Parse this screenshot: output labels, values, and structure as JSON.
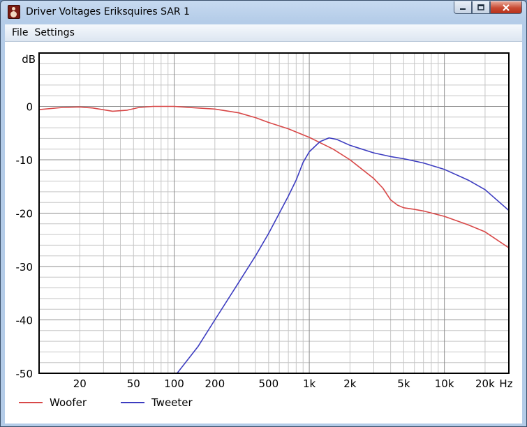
{
  "window": {
    "title": "Driver Voltages Eriksquires SAR 1",
    "icon": "speaker-icon"
  },
  "menu": {
    "items": [
      "File",
      "Settings"
    ]
  },
  "chart_data": {
    "type": "line",
    "ylabel": "dB",
    "xlabel": "Hz",
    "x_scale": "log",
    "xlim": [
      10,
      30000
    ],
    "ylim": [
      -50,
      10
    ],
    "grid": true,
    "legend_position": "bottom-left",
    "y_ticks": [
      0,
      -10,
      -20,
      -30,
      -40,
      -50
    ],
    "y_tick_labels": [
      "0",
      "-10",
      "-20",
      "-30",
      "-40",
      "-50"
    ],
    "x_ticks": [
      20,
      50,
      100,
      200,
      500,
      1000,
      2000,
      5000,
      10000,
      20000
    ],
    "x_tick_labels": [
      "20",
      "50",
      "100",
      "200",
      "500",
      "1k",
      "2k",
      "5k",
      "10k",
      "20k"
    ],
    "series": [
      {
        "name": "Woofer",
        "color": "#d84848",
        "points": [
          [
            10,
            -0.6
          ],
          [
            15,
            -0.2
          ],
          [
            20,
            -0.1
          ],
          [
            25,
            -0.3
          ],
          [
            35,
            -0.9
          ],
          [
            45,
            -0.7
          ],
          [
            55,
            -0.2
          ],
          [
            70,
            0.0
          ],
          [
            90,
            0.0
          ],
          [
            100,
            0.0
          ],
          [
            150,
            -0.3
          ],
          [
            200,
            -0.5
          ],
          [
            300,
            -1.2
          ],
          [
            400,
            -2.1
          ],
          [
            500,
            -3.0
          ],
          [
            700,
            -4.2
          ],
          [
            1000,
            -5.8
          ],
          [
            1500,
            -8.0
          ],
          [
            2000,
            -10.0
          ],
          [
            3000,
            -13.5
          ],
          [
            3500,
            -15.3
          ],
          [
            4000,
            -17.5
          ],
          [
            4500,
            -18.5
          ],
          [
            5000,
            -19.0
          ],
          [
            6000,
            -19.3
          ],
          [
            7000,
            -19.6
          ],
          [
            10000,
            -20.6
          ],
          [
            15000,
            -22.2
          ],
          [
            20000,
            -23.5
          ],
          [
            30000,
            -26.5
          ]
        ]
      },
      {
        "name": "Tweeter",
        "color": "#3c3cc0",
        "points": [
          [
            105,
            -50
          ],
          [
            150,
            -45
          ],
          [
            200,
            -40
          ],
          [
            300,
            -33
          ],
          [
            400,
            -28
          ],
          [
            500,
            -23.8
          ],
          [
            600,
            -20
          ],
          [
            700,
            -16.8
          ],
          [
            800,
            -13.8
          ],
          [
            900,
            -10.5
          ],
          [
            1000,
            -8.5
          ],
          [
            1200,
            -6.6
          ],
          [
            1400,
            -5.9
          ],
          [
            1600,
            -6.2
          ],
          [
            2000,
            -7.3
          ],
          [
            3000,
            -8.7
          ],
          [
            4000,
            -9.4
          ],
          [
            5000,
            -9.8
          ],
          [
            7000,
            -10.6
          ],
          [
            10000,
            -11.8
          ],
          [
            15000,
            -13.8
          ],
          [
            20000,
            -15.6
          ],
          [
            30000,
            -19.5
          ]
        ]
      }
    ]
  }
}
